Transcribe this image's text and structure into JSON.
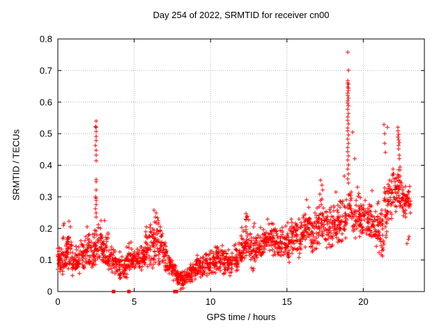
{
  "chart_data": {
    "type": "scatter",
    "title": "Day 254 of 2022, SRMTID for receiver cn00",
    "xlabel": "GPS time / hours",
    "ylabel": "SRMTID / TECUs",
    "xlim": [
      0,
      24
    ],
    "ylim": [
      0,
      0.8
    ],
    "xticks": {
      "values": [
        0,
        5,
        10,
        15,
        20
      ],
      "labels": [
        "0",
        "5",
        "10",
        "15",
        "20"
      ]
    },
    "yticks": {
      "values": [
        0,
        0.1,
        0.2,
        0.3,
        0.4,
        0.5,
        0.6,
        0.7,
        0.8
      ],
      "labels": [
        "0",
        "0.1",
        "0.2",
        "0.3",
        "0.4",
        "0.5",
        "0.6",
        "0.7",
        "0.8"
      ]
    },
    "grid": true,
    "legend": null,
    "marker": {
      "glyph": "plus",
      "size": 7
    },
    "flag_marker": {
      "glyph": "filled-square",
      "size": 5
    },
    "colors": {
      "marker": "#ff0000",
      "grid": "#b0b0b0",
      "axis": "#000000",
      "text": "#000000",
      "background": "#ffffff"
    },
    "cluster_bins": [
      [
        0.0,
        0.3,
        30,
        0.05,
        0.17
      ],
      [
        0.3,
        0.6,
        30,
        0.04,
        0.2
      ],
      [
        0.6,
        0.9,
        28,
        0.06,
        0.21
      ],
      [
        0.9,
        1.2,
        26,
        0.05,
        0.16
      ],
      [
        1.2,
        1.5,
        26,
        0.05,
        0.15
      ],
      [
        1.5,
        1.8,
        26,
        0.06,
        0.18
      ],
      [
        1.8,
        2.1,
        28,
        0.07,
        0.2
      ],
      [
        2.1,
        2.4,
        26,
        0.07,
        0.2
      ],
      [
        2.4,
        2.7,
        26,
        0.08,
        0.23
      ],
      [
        2.7,
        3.0,
        28,
        0.09,
        0.22
      ],
      [
        3.0,
        3.3,
        26,
        0.07,
        0.21
      ],
      [
        3.3,
        3.6,
        24,
        0.05,
        0.16
      ],
      [
        3.6,
        3.9,
        24,
        0.05,
        0.14
      ],
      [
        3.9,
        4.2,
        24,
        0.04,
        0.13
      ],
      [
        4.2,
        4.5,
        24,
        0.04,
        0.12
      ],
      [
        4.5,
        4.8,
        26,
        0.05,
        0.17
      ],
      [
        4.8,
        5.1,
        26,
        0.06,
        0.15
      ],
      [
        5.1,
        5.4,
        24,
        0.06,
        0.14
      ],
      [
        5.4,
        5.7,
        26,
        0.06,
        0.18
      ],
      [
        5.7,
        6.0,
        28,
        0.07,
        0.22
      ],
      [
        6.0,
        6.3,
        28,
        0.07,
        0.24
      ],
      [
        6.3,
        6.6,
        28,
        0.08,
        0.25
      ],
      [
        6.6,
        6.9,
        26,
        0.07,
        0.22
      ],
      [
        6.9,
        7.2,
        24,
        0.06,
        0.16
      ],
      [
        7.2,
        7.5,
        24,
        0.05,
        0.13
      ],
      [
        7.5,
        7.8,
        26,
        0.03,
        0.1
      ],
      [
        7.8,
        8.1,
        28,
        0.015,
        0.08
      ],
      [
        8.1,
        8.4,
        28,
        0.01,
        0.07
      ],
      [
        8.4,
        8.7,
        26,
        0.02,
        0.09
      ],
      [
        8.7,
        9.0,
        26,
        0.03,
        0.11
      ],
      [
        9.0,
        9.3,
        26,
        0.04,
        0.12
      ],
      [
        9.3,
        9.6,
        24,
        0.04,
        0.12
      ],
      [
        9.6,
        9.9,
        24,
        0.05,
        0.13
      ],
      [
        9.9,
        10.2,
        26,
        0.05,
        0.14
      ],
      [
        10.2,
        10.5,
        26,
        0.05,
        0.15
      ],
      [
        10.5,
        10.8,
        26,
        0.06,
        0.16
      ],
      [
        10.8,
        11.1,
        24,
        0.05,
        0.15
      ],
      [
        11.1,
        11.4,
        24,
        0.05,
        0.14
      ],
      [
        11.4,
        11.7,
        24,
        0.06,
        0.16
      ],
      [
        11.7,
        12.0,
        26,
        0.06,
        0.17
      ],
      [
        12.0,
        12.3,
        28,
        0.08,
        0.22
      ],
      [
        12.3,
        12.6,
        28,
        0.09,
        0.24
      ],
      [
        12.6,
        12.9,
        26,
        0.06,
        0.22
      ],
      [
        12.9,
        13.2,
        26,
        0.1,
        0.2
      ],
      [
        13.2,
        13.5,
        26,
        0.11,
        0.21
      ],
      [
        13.5,
        13.8,
        26,
        0.12,
        0.24
      ],
      [
        13.8,
        14.1,
        26,
        0.12,
        0.23
      ],
      [
        14.1,
        14.4,
        26,
        0.11,
        0.22
      ],
      [
        14.4,
        14.7,
        24,
        0.1,
        0.2
      ],
      [
        14.7,
        15.0,
        24,
        0.11,
        0.21
      ],
      [
        15.0,
        15.3,
        26,
        0.08,
        0.24
      ],
      [
        15.3,
        15.6,
        26,
        0.11,
        0.25
      ],
      [
        15.6,
        15.9,
        24,
        0.1,
        0.24
      ],
      [
        15.9,
        16.2,
        26,
        0.12,
        0.27
      ],
      [
        16.2,
        16.5,
        26,
        0.12,
        0.28
      ],
      [
        16.5,
        16.8,
        24,
        0.11,
        0.25
      ],
      [
        16.8,
        17.1,
        26,
        0.13,
        0.28
      ],
      [
        17.1,
        17.4,
        26,
        0.15,
        0.33
      ],
      [
        17.4,
        17.7,
        24,
        0.13,
        0.3
      ],
      [
        17.7,
        18.0,
        24,
        0.13,
        0.28
      ],
      [
        18.0,
        18.3,
        26,
        0.15,
        0.3
      ],
      [
        18.3,
        18.6,
        26,
        0.15,
        0.31
      ],
      [
        18.6,
        18.9,
        24,
        0.16,
        0.34
      ],
      [
        18.9,
        19.2,
        20,
        0.2,
        0.33
      ],
      [
        19.2,
        19.5,
        22,
        0.16,
        0.33
      ],
      [
        19.5,
        19.8,
        24,
        0.15,
        0.33
      ],
      [
        19.8,
        20.1,
        24,
        0.17,
        0.31
      ],
      [
        20.1,
        20.4,
        26,
        0.18,
        0.31
      ],
      [
        20.4,
        20.7,
        24,
        0.15,
        0.3
      ],
      [
        20.7,
        21.0,
        24,
        0.13,
        0.28
      ],
      [
        21.0,
        21.3,
        26,
        0.1,
        0.3
      ],
      [
        21.3,
        21.6,
        26,
        0.15,
        0.38
      ],
      [
        21.6,
        21.9,
        26,
        0.22,
        0.38
      ],
      [
        21.9,
        22.2,
        26,
        0.25,
        0.4
      ],
      [
        22.2,
        22.5,
        28,
        0.26,
        0.42
      ],
      [
        22.5,
        22.8,
        28,
        0.22,
        0.35
      ],
      [
        22.8,
        23.1,
        22,
        0.24,
        0.34
      ]
    ],
    "outlier_points": [
      [
        0.35,
        0.21
      ],
      [
        0.42,
        0.215
      ],
      [
        0.75,
        0.222
      ],
      [
        0.8,
        0.205
      ],
      [
        1.92,
        0.205
      ],
      [
        2.85,
        0.225
      ],
      [
        3.05,
        0.225
      ],
      [
        2.5,
        0.54
      ],
      [
        2.47,
        0.523
      ],
      [
        2.52,
        0.52
      ],
      [
        2.5,
        0.507
      ],
      [
        2.49,
        0.492
      ],
      [
        2.52,
        0.478
      ],
      [
        2.47,
        0.463
      ],
      [
        2.5,
        0.447
      ],
      [
        2.51,
        0.432
      ],
      [
        2.49,
        0.415
      ],
      [
        2.5,
        0.355
      ],
      [
        2.53,
        0.348
      ],
      [
        2.49,
        0.322
      ],
      [
        2.47,
        0.3
      ],
      [
        2.51,
        0.296
      ],
      [
        2.53,
        0.288
      ],
      [
        2.5,
        0.275
      ],
      [
        2.48,
        0.262
      ],
      [
        2.5,
        0.248
      ],
      [
        2.52,
        0.235
      ],
      [
        6.3,
        0.258
      ],
      [
        6.42,
        0.25
      ],
      [
        8.02,
        0.006
      ],
      [
        8.1,
        0.012
      ],
      [
        8.22,
        0.01
      ],
      [
        12.32,
        0.246
      ],
      [
        12.4,
        0.238
      ],
      [
        16.28,
        0.29
      ],
      [
        17.22,
        0.352
      ],
      [
        17.3,
        0.338
      ],
      [
        17.35,
        0.322
      ],
      [
        18.2,
        0.315
      ],
      [
        18.75,
        0.365
      ],
      [
        19.0,
        0.758
      ],
      [
        19.02,
        0.7
      ],
      [
        18.97,
        0.668
      ],
      [
        19.0,
        0.662
      ],
      [
        19.04,
        0.656
      ],
      [
        18.98,
        0.649
      ],
      [
        19.01,
        0.643
      ],
      [
        19.03,
        0.636
      ],
      [
        18.97,
        0.629
      ],
      [
        19.0,
        0.621
      ],
      [
        19.02,
        0.612
      ],
      [
        18.98,
        0.604
      ],
      [
        19.0,
        0.597
      ],
      [
        19.03,
        0.588
      ],
      [
        18.99,
        0.577
      ],
      [
        19.01,
        0.565
      ],
      [
        18.98,
        0.553
      ],
      [
        19.0,
        0.543
      ],
      [
        19.02,
        0.531
      ],
      [
        18.97,
        0.519
      ],
      [
        19.0,
        0.508
      ],
      [
        19.01,
        0.495
      ],
      [
        18.99,
        0.482
      ],
      [
        19.02,
        0.47
      ],
      [
        19.0,
        0.457
      ],
      [
        18.98,
        0.444
      ],
      [
        19.01,
        0.43
      ],
      [
        19.0,
        0.416
      ],
      [
        19.02,
        0.402
      ],
      [
        18.99,
        0.388
      ],
      [
        19.01,
        0.373
      ],
      [
        19.0,
        0.358
      ],
      [
        19.04,
        0.344
      ],
      [
        19.3,
        0.505
      ],
      [
        19.45,
        0.42
      ],
      [
        19.62,
        0.33
      ],
      [
        19.65,
        0.302
      ],
      [
        20.6,
        0.32
      ],
      [
        21.28,
        0.112
      ],
      [
        21.33,
        0.132
      ],
      [
        21.36,
        0.15
      ],
      [
        21.35,
        0.53
      ],
      [
        21.42,
        0.5
      ],
      [
        21.4,
        0.47
      ],
      [
        21.45,
        0.44
      ],
      [
        21.6,
        0.52
      ],
      [
        22.25,
        0.52
      ],
      [
        22.28,
        0.508
      ],
      [
        22.32,
        0.498
      ],
      [
        22.27,
        0.49
      ],
      [
        22.3,
        0.481
      ],
      [
        22.34,
        0.472
      ],
      [
        22.29,
        0.463
      ],
      [
        22.31,
        0.452
      ],
      [
        22.36,
        0.432
      ],
      [
        22.38,
        0.42
      ],
      [
        22.88,
        0.152
      ],
      [
        22.93,
        0.165
      ],
      [
        23.0,
        0.175
      ]
    ],
    "zero_flag_points": [
      [
        3.64,
        0
      ],
      [
        4.65,
        0
      ],
      [
        7.66,
        0
      ],
      [
        7.74,
        0
      ]
    ]
  }
}
